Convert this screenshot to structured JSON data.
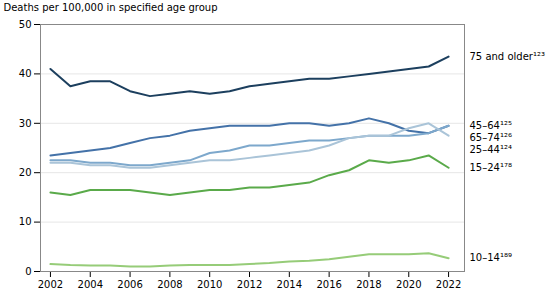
{
  "chart_data": {
    "type": "line",
    "x": [
      2002,
      2003,
      2004,
      2005,
      2006,
      2007,
      2008,
      2009,
      2010,
      2011,
      2012,
      2013,
      2014,
      2015,
      2016,
      2017,
      2018,
      2019,
      2020,
      2021,
      2022
    ],
    "series": [
      {
        "name": "75 and older¹²³",
        "color": "#1c3f5e",
        "values": [
          41.0,
          37.5,
          38.5,
          38.5,
          36.5,
          35.5,
          36.0,
          36.5,
          36.0,
          36.5,
          37.5,
          38.0,
          38.5,
          39.0,
          39.0,
          39.5,
          40.0,
          40.5,
          41.0,
          41.5,
          43.5
        ]
      },
      {
        "name": "45–64¹²⁵",
        "color": "#4472a8",
        "values": [
          23.5,
          24.0,
          24.5,
          25.0,
          26.0,
          27.0,
          27.5,
          28.5,
          29.0,
          29.5,
          29.5,
          29.5,
          30.0,
          30.0,
          29.5,
          30.0,
          31.0,
          30.0,
          28.5,
          28.0,
          29.5
        ]
      },
      {
        "name": "65–74¹²⁶",
        "color": "#7da8cc",
        "values": [
          22.5,
          22.5,
          22.0,
          22.0,
          21.5,
          21.5,
          22.0,
          22.5,
          24.0,
          24.5,
          25.5,
          25.5,
          26.0,
          26.5,
          26.5,
          27.0,
          27.5,
          27.5,
          27.5,
          28.0,
          29.5
        ]
      },
      {
        "name": "25–44¹²⁴",
        "color": "#aac4d8",
        "values": [
          22.0,
          22.0,
          21.5,
          21.5,
          21.0,
          21.0,
          21.5,
          22.0,
          22.5,
          22.5,
          23.0,
          23.5,
          24.0,
          24.5,
          25.5,
          27.0,
          27.5,
          27.5,
          29.0,
          30.0,
          27.5
        ]
      },
      {
        "name": "15–24¹⁷⁸",
        "color": "#5aaa4a",
        "values": [
          16.0,
          15.5,
          16.5,
          16.5,
          16.5,
          16.0,
          15.5,
          16.0,
          16.5,
          16.5,
          17.0,
          17.0,
          17.5,
          18.0,
          19.5,
          20.5,
          22.5,
          22.0,
          22.5,
          23.5,
          21.0
        ]
      },
      {
        "name": "10–14¹⁸⁹",
        "color": "#96cc78",
        "values": [
          1.5,
          1.3,
          1.2,
          1.2,
          1.0,
          1.0,
          1.2,
          1.3,
          1.3,
          1.3,
          1.5,
          1.7,
          2.0,
          2.2,
          2.5,
          3.0,
          3.5,
          3.5,
          3.5,
          3.7,
          2.7
        ]
      }
    ],
    "xlim": [
      2001.5,
      2022.8
    ],
    "ylim": [
      0,
      50
    ],
    "xticks": [
      2002,
      2004,
      2006,
      2008,
      2010,
      2012,
      2014,
      2016,
      2018,
      2020,
      2022
    ],
    "yticks": [
      0,
      10,
      20,
      30,
      40,
      50
    ],
    "ylabel": "Deaths per 100,000 in specified age group",
    "grid": true
  }
}
